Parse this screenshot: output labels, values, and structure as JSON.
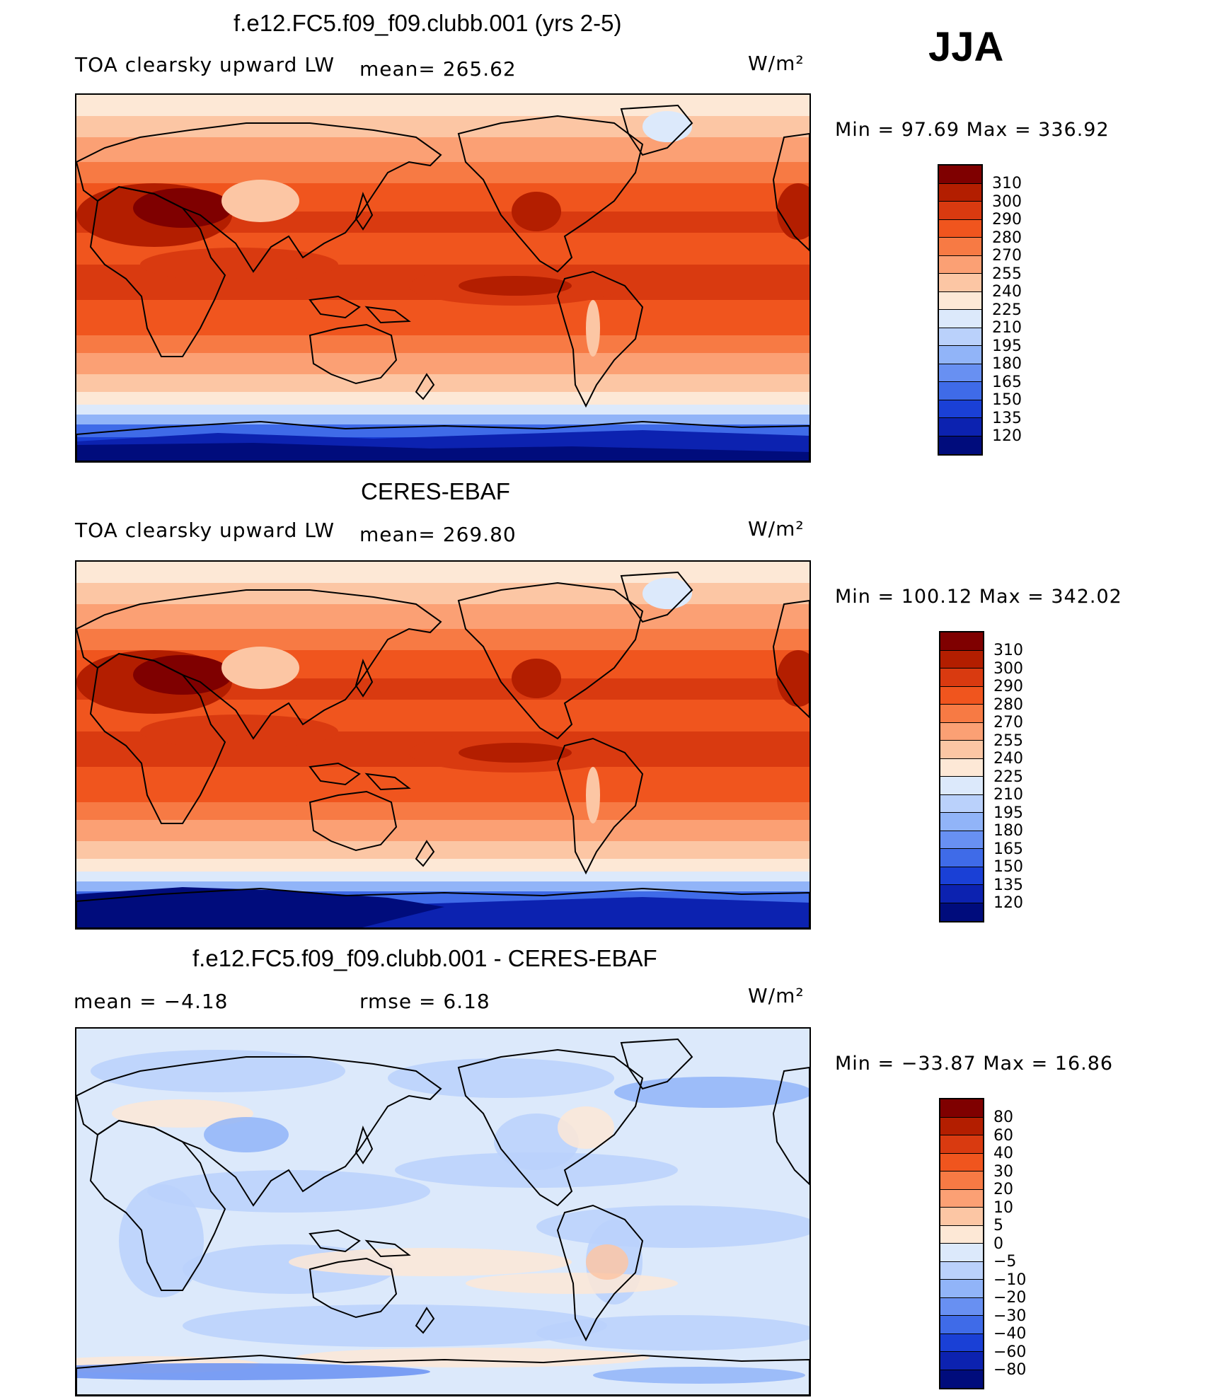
{
  "season": "JJA",
  "units": "W/m²",
  "panels": [
    {
      "title": "f.e12.FC5.f09_f09.clubb.001 (yrs 2-5)",
      "subtitle_left": "TOA clearsky upward LW",
      "subtitle_mid": "mean=  265.62",
      "min_max": "Min  =    97.69  Max  =  336.92",
      "palette": "abs"
    },
    {
      "title": "CERES-EBAF",
      "subtitle_left": "TOA clearsky upward LW",
      "subtitle_mid": "mean=  269.80",
      "min_max": "Min  =  100.12  Max  =  342.02",
      "palette": "abs"
    },
    {
      "title": "f.e12.FC5.f09_f09.clubb.001 - CERES-EBAF",
      "subtitle_left": "mean  =    −4.18",
      "subtitle_mid": "rmse  =     6.18",
      "min_max": "Min  =  −33.87  Max  =    16.86",
      "palette": "diff"
    }
  ],
  "colorbars": {
    "abs": {
      "labels": [
        "310",
        "300",
        "290",
        "280",
        "270",
        "255",
        "240",
        "225",
        "210",
        "195",
        "180",
        "165",
        "150",
        "135",
        "120"
      ],
      "colors": [
        "#7f0000",
        "#b31e00",
        "#d93a10",
        "#f0551e",
        "#f77a44",
        "#fba074",
        "#fcc6a4",
        "#fde8d6",
        "#dce9fb",
        "#bad1fb",
        "#91b4f8",
        "#6890f2",
        "#3f6be8",
        "#1a40d6",
        "#0c22b0",
        "#000c7c"
      ]
    },
    "diff": {
      "labels": [
        "80",
        "60",
        "40",
        "30",
        "20",
        "10",
        "5",
        "0",
        "−5",
        "−10",
        "−20",
        "−30",
        "−40",
        "−60",
        "−80"
      ],
      "colors": [
        "#7f0000",
        "#b31e00",
        "#d93a10",
        "#f0551e",
        "#f77a44",
        "#fba074",
        "#fcc6a4",
        "#fde8d6",
        "#dce9fb",
        "#bad1fb",
        "#91b4f8",
        "#6890f2",
        "#3f6be8",
        "#1a40d6",
        "#0c22b0",
        "#000c7c"
      ]
    }
  }
}
